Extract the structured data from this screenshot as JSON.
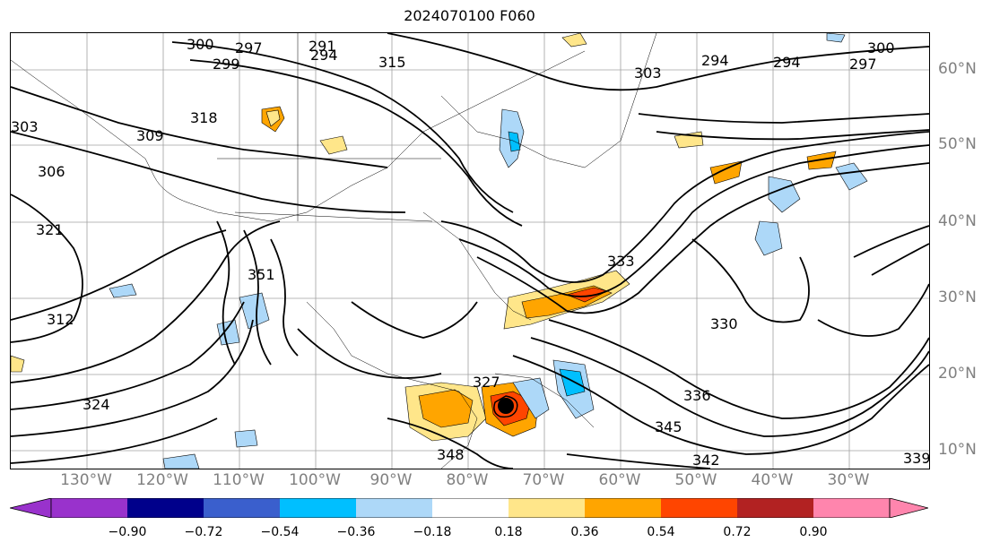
{
  "title": "2024070100 F060",
  "map": {
    "lon_labels": [
      "130°W",
      "120°W",
      "110°W",
      "100°W",
      "90°W",
      "80°W",
      "70°W",
      "60°W",
      "50°W",
      "40°W",
      "30°W"
    ],
    "lat_labels": [
      "60°N",
      "50°N",
      "40°N",
      "30°N",
      "20°N",
      "10°N"
    ],
    "contour_labels": [
      "300",
      "297",
      "291",
      "294",
      "315",
      "299",
      "303",
      "306",
      "309",
      "318",
      "321",
      "312",
      "324",
      "330",
      "333",
      "336",
      "339",
      "342",
      "345",
      "348",
      "297",
      "294",
      "294",
      "300",
      "303",
      "327",
      "351"
    ],
    "storm_marker": "tropical-cyclone-center"
  },
  "colorbar": {
    "ticks": [
      "−0.90",
      "−0.72",
      "−0.54",
      "−0.36",
      "−0.18",
      "0.18",
      "0.36",
      "0.54",
      "0.72",
      "0.90"
    ],
    "colors": [
      "#9932cc",
      "#00008b",
      "#3a5fcd",
      "#00bfff",
      "#add8f8",
      "#ffffff",
      "#ffe68a",
      "#ffa500",
      "#ff4500",
      "#b22222",
      "#ff85ad"
    ]
  }
}
